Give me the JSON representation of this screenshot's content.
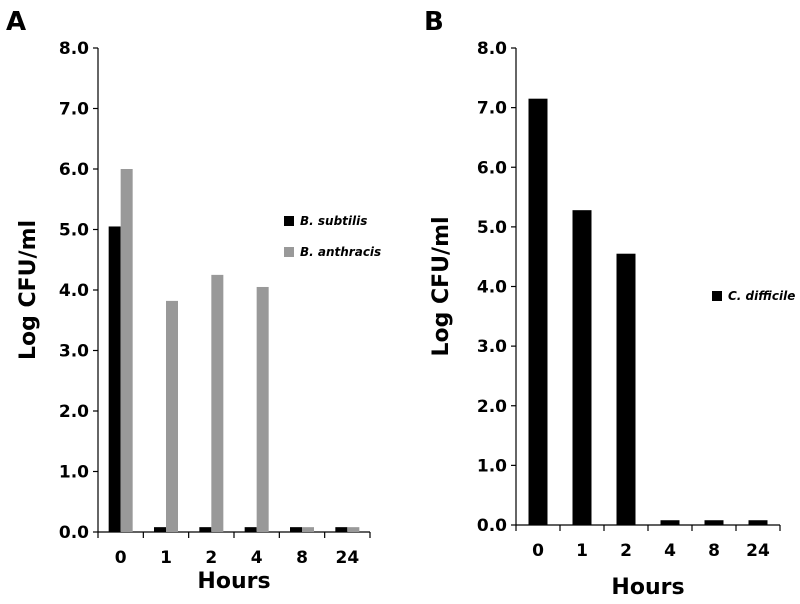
{
  "colors": {
    "series_black": "#000000",
    "series_gray": "#999999"
  },
  "chart_data": [
    {
      "panel": "A",
      "type": "bar",
      "xlabel": "Hours",
      "ylabel": "Log CFU/ml",
      "categories": [
        "0",
        "1",
        "2",
        "4",
        "8",
        "24"
      ],
      "ylim": [
        0,
        8
      ],
      "yticks": [
        "0.0",
        "1.0",
        "2.0",
        "3.0",
        "4.0",
        "5.0",
        "6.0",
        "7.0",
        "8.0"
      ],
      "grid": false,
      "legend_position": "right",
      "series": [
        {
          "name": "B. subtilis",
          "color": "#000000",
          "values": [
            5.05,
            0.08,
            0.08,
            0.08,
            0.08,
            0.08
          ]
        },
        {
          "name": "B. anthracis",
          "color": "#999999",
          "values": [
            6.0,
            3.82,
            4.25,
            4.05,
            0.08,
            0.08
          ]
        }
      ]
    },
    {
      "panel": "B",
      "type": "bar",
      "xlabel": "Hours",
      "ylabel": "Log CFU/ml",
      "categories": [
        "0",
        "1",
        "2",
        "4",
        "8",
        "24"
      ],
      "ylim": [
        0,
        8
      ],
      "yticks": [
        "0.0",
        "1.0",
        "2.0",
        "3.0",
        "4.0",
        "5.0",
        "6.0",
        "7.0",
        "8.0"
      ],
      "grid": false,
      "legend_position": "right",
      "series": [
        {
          "name": "C. difficile",
          "color": "#000000",
          "values": [
            7.15,
            5.28,
            4.55,
            0.08,
            0.08,
            0.08
          ]
        }
      ]
    }
  ]
}
